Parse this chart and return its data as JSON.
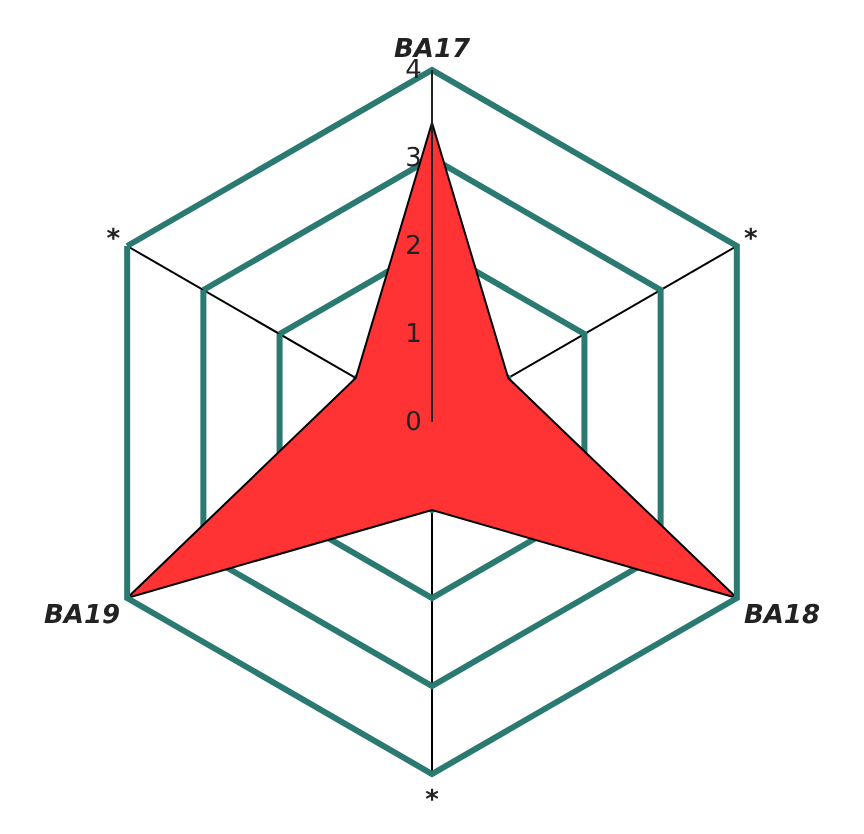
{
  "chart_data": {
    "type": "radar",
    "categories": [
      "BA17",
      "*",
      "BA18",
      "*",
      "BA19",
      "*"
    ],
    "series": [
      {
        "color": "#ff3333",
        "values": [
          3.4,
          1,
          4,
          1,
          4,
          1
        ]
      }
    ],
    "ylim": [
      0,
      4
    ],
    "yticks": [
      0,
      1,
      2,
      3,
      4
    ],
    "grid": true,
    "marker": "none"
  }
}
